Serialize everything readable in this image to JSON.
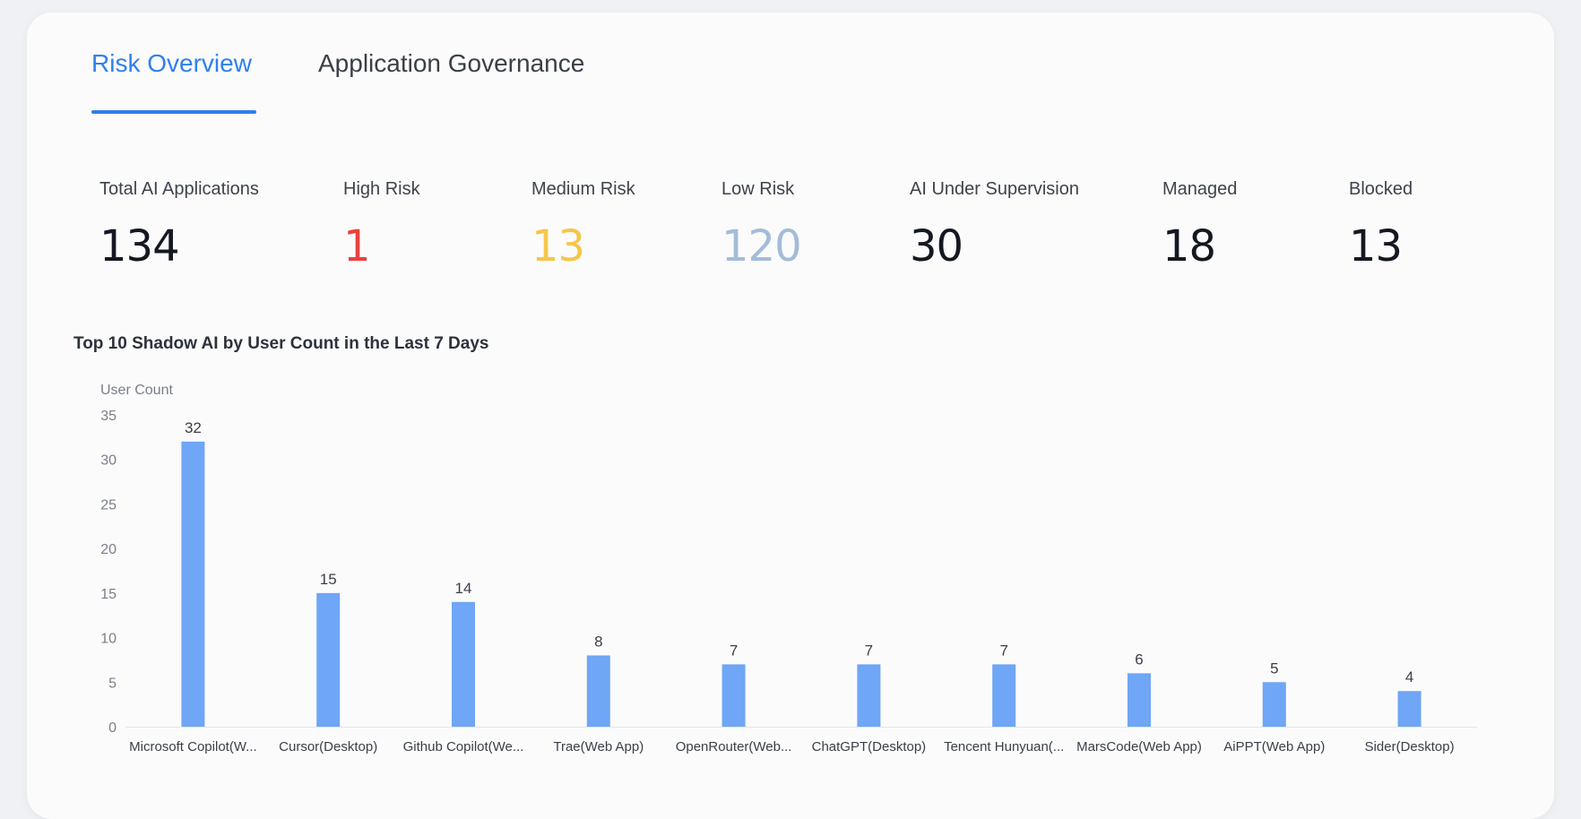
{
  "tabs": [
    {
      "label": "Risk Overview",
      "active": true
    },
    {
      "label": "Application Governance",
      "active": false
    }
  ],
  "stats": [
    {
      "label": "Total AI Applications",
      "value": "134",
      "color": "#141821"
    },
    {
      "label": "High Risk",
      "value": "1",
      "color": "#e8433f"
    },
    {
      "label": "Medium Risk",
      "value": "13",
      "color": "#f6c64a"
    },
    {
      "label": "Low Risk",
      "value": "120",
      "color": "#a3bcd9"
    },
    {
      "label": "AI Under Supervision",
      "value": "30",
      "color": "#141821"
    },
    {
      "label": "Managed",
      "value": "18",
      "color": "#141821"
    },
    {
      "label": "Blocked",
      "value": "13",
      "color": "#141821"
    }
  ],
  "chart_data": {
    "type": "bar",
    "title": "Top 10 Shadow AI by User Count in the Last 7 Days",
    "ylabel": "User Count",
    "xlabel": "",
    "ylim": [
      0,
      35
    ],
    "yticks": [
      0,
      5,
      10,
      15,
      20,
      25,
      30,
      35
    ],
    "grid": false,
    "bar_color": "#6fa6f5",
    "categories": [
      "Microsoft Copilot(W...",
      "Cursor(Desktop)",
      "Github Copilot(We...",
      "Trae(Web App)",
      "OpenRouter(Web...",
      "ChatGPT(Desktop)",
      "Tencent Hunyuan(...",
      "MarsCode(Web App)",
      "AiPPT(Web App)",
      "Sider(Desktop)"
    ],
    "values": [
      32,
      15,
      14,
      8,
      7,
      7,
      7,
      6,
      5,
      4
    ]
  }
}
